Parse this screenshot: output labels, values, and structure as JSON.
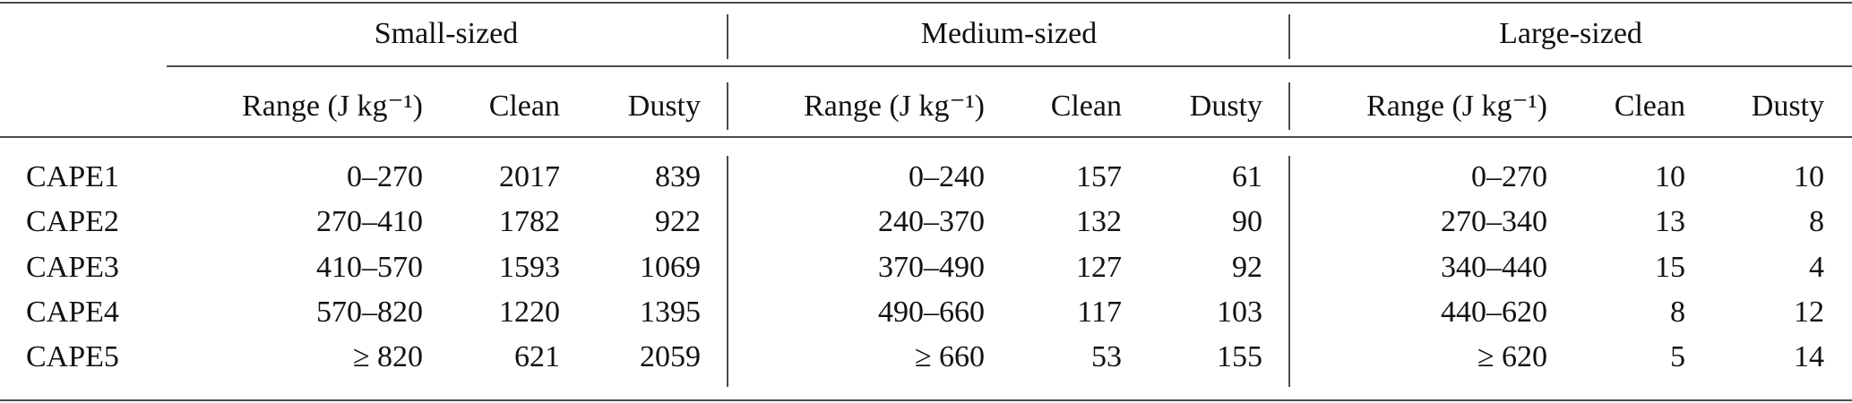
{
  "table": {
    "groups": [
      "Small-sized",
      "Medium-sized",
      "Large-sized"
    ],
    "column_headers": [
      "Range (J kg⁻¹)",
      "Clean",
      "Dusty",
      "Range (J kg⁻¹)",
      "Clean",
      "Dusty",
      "Range (J kg⁻¹)",
      "Clean",
      "Dusty"
    ],
    "rows": [
      {
        "label": "CAPE1",
        "cells": [
          "0–270",
          2017,
          839,
          "0–240",
          157,
          61,
          "0–270",
          10,
          10
        ]
      },
      {
        "label": "CAPE2",
        "cells": [
          "270–410",
          1782,
          922,
          "240–370",
          132,
          90,
          "270–340",
          13,
          8
        ]
      },
      {
        "label": "CAPE3",
        "cells": [
          "410–570",
          1593,
          1069,
          "370–490",
          127,
          92,
          "340–440",
          15,
          4
        ]
      },
      {
        "label": "CAPE4",
        "cells": [
          "570–820",
          1220,
          1395,
          "490–660",
          117,
          103,
          "440–620",
          8,
          12
        ]
      },
      {
        "label": "CAPE5",
        "cells": [
          "≥ 820",
          621,
          2059,
          "≥ 660",
          53,
          155,
          "≥ 620",
          5,
          14
        ]
      }
    ]
  }
}
